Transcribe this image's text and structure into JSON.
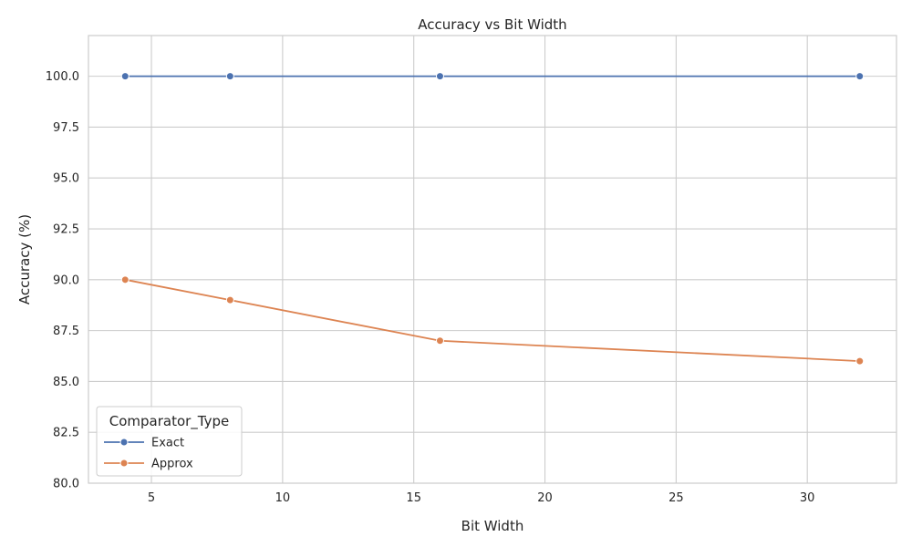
{
  "chart_data": {
    "type": "line",
    "title": "Accuracy vs Bit Width",
    "xlabel": "Bit Width",
    "ylabel": "Accuracy (%)",
    "xlim": [
      2.6,
      33.4
    ],
    "ylim": [
      80.0,
      102.0
    ],
    "xticks": [
      5,
      10,
      15,
      20,
      25,
      30
    ],
    "yticks": [
      80.0,
      82.5,
      85.0,
      87.5,
      90.0,
      92.5,
      95.0,
      97.5,
      100.0
    ],
    "xtick_labels": [
      "5",
      "10",
      "15",
      "20",
      "25",
      "30"
    ],
    "ytick_labels": [
      "80.0",
      "82.5",
      "85.0",
      "87.5",
      "90.0",
      "92.5",
      "95.0",
      "97.5",
      "100.0"
    ],
    "grid": true,
    "legend": {
      "title": "Comparator_Type",
      "placement": "lower-left"
    },
    "series": [
      {
        "name": "Exact",
        "color": "#4c72b0",
        "x": [
          4,
          8,
          16,
          32
        ],
        "y": [
          100,
          100,
          100,
          100
        ]
      },
      {
        "name": "Approx",
        "color": "#dd8452",
        "x": [
          4,
          8,
          16,
          32
        ],
        "y": [
          90,
          89,
          87,
          86
        ]
      }
    ]
  }
}
